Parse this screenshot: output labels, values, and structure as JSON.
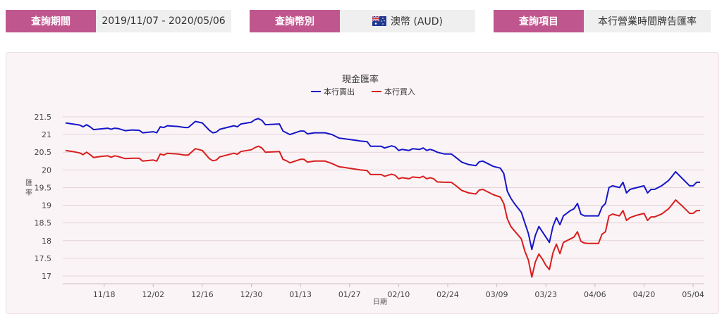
{
  "query": {
    "period_label": "查詢期間",
    "period_value": "2019/11/07 - 2020/05/06",
    "currency_label": "查詢幣別",
    "currency_value": "澳幣 (AUD)",
    "currency_flag_icon": "australia-flag-icon",
    "item_label": "查詢項目",
    "item_value": "本行營業時間牌告匯率"
  },
  "colors": {
    "accent": "#c0568e",
    "sell_line": "#1515c8",
    "buy_line": "#d81e1e",
    "grid": "#e3d3d8"
  },
  "chart_data": {
    "type": "line",
    "title": "現金匯率",
    "xlabel": "日期",
    "ylabel": "匯率",
    "x_range": [
      "2019-11-07",
      "2020-05-06"
    ],
    "ylim": [
      16.9,
      21.6
    ],
    "yticks": [
      17,
      17.5,
      18,
      18.5,
      19,
      19.5,
      20,
      20.5,
      21,
      21.5
    ],
    "xticks": [
      {
        "date": "2019-11-18",
        "label": "11/18"
      },
      {
        "date": "2019-12-02",
        "label": "12/02"
      },
      {
        "date": "2019-12-16",
        "label": "12/16"
      },
      {
        "date": "2019-12-30",
        "label": "12/30"
      },
      {
        "date": "2020-01-13",
        "label": "01/13"
      },
      {
        "date": "2020-01-27",
        "label": "01/27"
      },
      {
        "date": "2020-02-10",
        "label": "02/10"
      },
      {
        "date": "2020-02-24",
        "label": "02/24"
      },
      {
        "date": "2020-03-09",
        "label": "03/09"
      },
      {
        "date": "2020-03-23",
        "label": "03/23"
      },
      {
        "date": "2020-04-06",
        "label": "04/06"
      },
      {
        "date": "2020-04-20",
        "label": "04/20"
      },
      {
        "date": "2020-05-04",
        "label": "05/04"
      }
    ],
    "grid": true,
    "legend_position": "top-center",
    "series": [
      {
        "name": "本行賣出",
        "color": "#1515c8",
        "points": [
          [
            "2019-11-07",
            21.33
          ],
          [
            "2019-11-09",
            21.3
          ],
          [
            "2019-11-11",
            21.27
          ],
          [
            "2019-11-12",
            21.22
          ],
          [
            "2019-11-13",
            21.28
          ],
          [
            "2019-11-14",
            21.22
          ],
          [
            "2019-11-15",
            21.14
          ],
          [
            "2019-11-17",
            21.16
          ],
          [
            "2019-11-19",
            21.18
          ],
          [
            "2019-11-20",
            21.15
          ],
          [
            "2019-11-21",
            21.18
          ],
          [
            "2019-11-22",
            21.17
          ],
          [
            "2019-11-24",
            21.11
          ],
          [
            "2019-11-26",
            21.13
          ],
          [
            "2019-11-28",
            21.12
          ],
          [
            "2019-11-29",
            21.05
          ],
          [
            "2019-12-02",
            21.08
          ],
          [
            "2019-12-03",
            21.05
          ],
          [
            "2019-12-04",
            21.22
          ],
          [
            "2019-12-05",
            21.2
          ],
          [
            "2019-12-06",
            21.25
          ],
          [
            "2019-12-09",
            21.23
          ],
          [
            "2019-12-11",
            21.2
          ],
          [
            "2019-12-12",
            21.2
          ],
          [
            "2019-12-14",
            21.37
          ],
          [
            "2019-12-16",
            21.33
          ],
          [
            "2019-12-18",
            21.12
          ],
          [
            "2019-12-19",
            21.05
          ],
          [
            "2019-12-20",
            21.07
          ],
          [
            "2019-12-21",
            21.15
          ],
          [
            "2019-12-25",
            21.25
          ],
          [
            "2019-12-26",
            21.22
          ],
          [
            "2019-12-27",
            21.3
          ],
          [
            "2019-12-30",
            21.35
          ],
          [
            "2019-12-31",
            21.42
          ],
          [
            "2020-01-01",
            21.45
          ],
          [
            "2020-01-02",
            21.4
          ],
          [
            "2020-01-03",
            21.28
          ],
          [
            "2020-01-07",
            21.3
          ],
          [
            "2020-01-08",
            21.1
          ],
          [
            "2020-01-09",
            21.05
          ],
          [
            "2020-01-10",
            21.0
          ],
          [
            "2020-01-13",
            21.1
          ],
          [
            "2020-01-14",
            21.1
          ],
          [
            "2020-01-15",
            21.02
          ],
          [
            "2020-01-17",
            21.05
          ],
          [
            "2020-01-20",
            21.05
          ],
          [
            "2020-01-22",
            21.0
          ],
          [
            "2020-01-24",
            20.9
          ],
          [
            "2020-01-28",
            20.85
          ],
          [
            "2020-01-30",
            20.82
          ],
          [
            "2020-02-01",
            20.8
          ],
          [
            "2020-02-02",
            20.67
          ],
          [
            "2020-02-05",
            20.67
          ],
          [
            "2020-02-06",
            20.62
          ],
          [
            "2020-02-08",
            20.68
          ],
          [
            "2020-02-09",
            20.65
          ],
          [
            "2020-02-10",
            20.55
          ],
          [
            "2020-02-11",
            20.58
          ],
          [
            "2020-02-13",
            20.55
          ],
          [
            "2020-02-14",
            20.6
          ],
          [
            "2020-02-16",
            20.58
          ],
          [
            "2020-02-17",
            20.62
          ],
          [
            "2020-02-18",
            20.55
          ],
          [
            "2020-02-19",
            20.58
          ],
          [
            "2020-02-20",
            20.55
          ],
          [
            "2020-02-21",
            20.5
          ],
          [
            "2020-02-23",
            20.45
          ],
          [
            "2020-02-25",
            20.45
          ],
          [
            "2020-02-26",
            20.38
          ],
          [
            "2020-02-28",
            20.22
          ],
          [
            "2020-03-01",
            20.15
          ],
          [
            "2020-03-03",
            20.12
          ],
          [
            "2020-03-04",
            20.23
          ],
          [
            "2020-03-05",
            20.25
          ],
          [
            "2020-03-06",
            20.2
          ],
          [
            "2020-03-08",
            20.1
          ],
          [
            "2020-03-10",
            20.05
          ],
          [
            "2020-03-11",
            19.9
          ],
          [
            "2020-03-12",
            19.4
          ],
          [
            "2020-03-13",
            19.2
          ],
          [
            "2020-03-14",
            19.05
          ],
          [
            "2020-03-16",
            18.8
          ],
          [
            "2020-03-17",
            18.5
          ],
          [
            "2020-03-18",
            18.2
          ],
          [
            "2020-03-19",
            17.75
          ],
          [
            "2020-03-20",
            18.15
          ],
          [
            "2020-03-21",
            18.4
          ],
          [
            "2020-03-22",
            18.25
          ],
          [
            "2020-03-23",
            18.1
          ],
          [
            "2020-03-24",
            17.95
          ],
          [
            "2020-03-25",
            18.4
          ],
          [
            "2020-03-26",
            18.65
          ],
          [
            "2020-03-27",
            18.45
          ],
          [
            "2020-03-28",
            18.7
          ],
          [
            "2020-03-30",
            18.85
          ],
          [
            "2020-03-31",
            18.9
          ],
          [
            "2020-04-01",
            19.05
          ],
          [
            "2020-04-02",
            18.75
          ],
          [
            "2020-04-03",
            18.7
          ],
          [
            "2020-04-04",
            18.7
          ],
          [
            "2020-04-06",
            18.7
          ],
          [
            "2020-04-07",
            18.7
          ],
          [
            "2020-04-08",
            18.95
          ],
          [
            "2020-04-09",
            19.05
          ],
          [
            "2020-04-10",
            19.5
          ],
          [
            "2020-04-11",
            19.55
          ],
          [
            "2020-04-13",
            19.5
          ],
          [
            "2020-04-14",
            19.65
          ],
          [
            "2020-04-15",
            19.35
          ],
          [
            "2020-04-16",
            19.45
          ],
          [
            "2020-04-18",
            19.5
          ],
          [
            "2020-04-20",
            19.55
          ],
          [
            "2020-04-21",
            19.35
          ],
          [
            "2020-04-22",
            19.45
          ],
          [
            "2020-04-23",
            19.45
          ],
          [
            "2020-04-25",
            19.55
          ],
          [
            "2020-04-27",
            19.7
          ],
          [
            "2020-04-28",
            19.82
          ],
          [
            "2020-04-29",
            19.95
          ],
          [
            "2020-05-01",
            19.75
          ],
          [
            "2020-05-02",
            19.65
          ],
          [
            "2020-05-03",
            19.55
          ],
          [
            "2020-05-04",
            19.55
          ],
          [
            "2020-05-05",
            19.65
          ],
          [
            "2020-05-06",
            19.65
          ]
        ]
      },
      {
        "name": "本行買入",
        "color": "#d81e1e",
        "points": [
          [
            "2019-11-07",
            20.55
          ],
          [
            "2019-11-09",
            20.52
          ],
          [
            "2019-11-11",
            20.48
          ],
          [
            "2019-11-12",
            20.43
          ],
          [
            "2019-11-13",
            20.5
          ],
          [
            "2019-11-14",
            20.43
          ],
          [
            "2019-11-15",
            20.35
          ],
          [
            "2019-11-17",
            20.38
          ],
          [
            "2019-11-19",
            20.4
          ],
          [
            "2019-11-20",
            20.36
          ],
          [
            "2019-11-21",
            20.4
          ],
          [
            "2019-11-22",
            20.38
          ],
          [
            "2019-11-24",
            20.32
          ],
          [
            "2019-11-26",
            20.33
          ],
          [
            "2019-11-28",
            20.33
          ],
          [
            "2019-11-29",
            20.25
          ],
          [
            "2019-12-02",
            20.28
          ],
          [
            "2019-12-03",
            20.25
          ],
          [
            "2019-12-04",
            20.45
          ],
          [
            "2019-12-05",
            20.42
          ],
          [
            "2019-12-06",
            20.47
          ],
          [
            "2019-12-09",
            20.45
          ],
          [
            "2019-12-11",
            20.42
          ],
          [
            "2019-12-12",
            20.42
          ],
          [
            "2019-12-14",
            20.6
          ],
          [
            "2019-12-16",
            20.55
          ],
          [
            "2019-12-18",
            20.32
          ],
          [
            "2019-12-19",
            20.26
          ],
          [
            "2019-12-20",
            20.28
          ],
          [
            "2019-12-21",
            20.37
          ],
          [
            "2019-12-25",
            20.47
          ],
          [
            "2019-12-26",
            20.44
          ],
          [
            "2019-12-27",
            20.52
          ],
          [
            "2019-12-30",
            20.57
          ],
          [
            "2019-12-31",
            20.63
          ],
          [
            "2020-01-01",
            20.67
          ],
          [
            "2020-01-02",
            20.62
          ],
          [
            "2020-01-03",
            20.5
          ],
          [
            "2020-01-07",
            20.52
          ],
          [
            "2020-01-08",
            20.3
          ],
          [
            "2020-01-09",
            20.26
          ],
          [
            "2020-01-10",
            20.2
          ],
          [
            "2020-01-13",
            20.3
          ],
          [
            "2020-01-14",
            20.3
          ],
          [
            "2020-01-15",
            20.22
          ],
          [
            "2020-01-17",
            20.25
          ],
          [
            "2020-01-20",
            20.25
          ],
          [
            "2020-01-22",
            20.18
          ],
          [
            "2020-01-24",
            20.09
          ],
          [
            "2020-01-28",
            20.03
          ],
          [
            "2020-01-30",
            20.0
          ],
          [
            "2020-02-01",
            19.98
          ],
          [
            "2020-02-02",
            19.87
          ],
          [
            "2020-02-05",
            19.87
          ],
          [
            "2020-02-06",
            19.82
          ],
          [
            "2020-02-08",
            19.88
          ],
          [
            "2020-02-09",
            19.85
          ],
          [
            "2020-02-10",
            19.75
          ],
          [
            "2020-02-11",
            19.78
          ],
          [
            "2020-02-13",
            19.75
          ],
          [
            "2020-02-14",
            19.8
          ],
          [
            "2020-02-16",
            19.78
          ],
          [
            "2020-02-17",
            19.82
          ],
          [
            "2020-02-18",
            19.75
          ],
          [
            "2020-02-19",
            19.78
          ],
          [
            "2020-02-20",
            19.75
          ],
          [
            "2020-02-21",
            19.66
          ],
          [
            "2020-02-23",
            19.65
          ],
          [
            "2020-02-25",
            19.65
          ],
          [
            "2020-02-26",
            19.58
          ],
          [
            "2020-02-28",
            19.42
          ],
          [
            "2020-03-01",
            19.35
          ],
          [
            "2020-03-03",
            19.32
          ],
          [
            "2020-03-04",
            19.43
          ],
          [
            "2020-03-05",
            19.45
          ],
          [
            "2020-03-06",
            19.4
          ],
          [
            "2020-03-08",
            19.3
          ],
          [
            "2020-03-10",
            19.23
          ],
          [
            "2020-03-11",
            19.05
          ],
          [
            "2020-03-12",
            18.62
          ],
          [
            "2020-03-13",
            18.4
          ],
          [
            "2020-03-14",
            18.28
          ],
          [
            "2020-03-16",
            18.05
          ],
          [
            "2020-03-17",
            17.7
          ],
          [
            "2020-03-18",
            17.45
          ],
          [
            "2020-03-19",
            16.97
          ],
          [
            "2020-03-20",
            17.4
          ],
          [
            "2020-03-21",
            17.62
          ],
          [
            "2020-03-22",
            17.48
          ],
          [
            "2020-03-23",
            17.3
          ],
          [
            "2020-03-24",
            17.18
          ],
          [
            "2020-03-25",
            17.65
          ],
          [
            "2020-03-26",
            17.9
          ],
          [
            "2020-03-27",
            17.63
          ],
          [
            "2020-03-28",
            17.95
          ],
          [
            "2020-03-30",
            18.05
          ],
          [
            "2020-03-31",
            18.1
          ],
          [
            "2020-04-01",
            18.25
          ],
          [
            "2020-04-02",
            17.98
          ],
          [
            "2020-04-03",
            17.93
          ],
          [
            "2020-04-04",
            17.92
          ],
          [
            "2020-04-06",
            17.92
          ],
          [
            "2020-04-07",
            17.92
          ],
          [
            "2020-04-08",
            18.18
          ],
          [
            "2020-04-09",
            18.25
          ],
          [
            "2020-04-10",
            18.7
          ],
          [
            "2020-04-11",
            18.75
          ],
          [
            "2020-04-13",
            18.7
          ],
          [
            "2020-04-14",
            18.85
          ],
          [
            "2020-04-15",
            18.57
          ],
          [
            "2020-04-16",
            18.65
          ],
          [
            "2020-04-18",
            18.72
          ],
          [
            "2020-04-20",
            18.77
          ],
          [
            "2020-04-21",
            18.57
          ],
          [
            "2020-04-22",
            18.67
          ],
          [
            "2020-04-23",
            18.67
          ],
          [
            "2020-04-25",
            18.75
          ],
          [
            "2020-04-27",
            18.9
          ],
          [
            "2020-04-28",
            19.02
          ],
          [
            "2020-04-29",
            19.15
          ],
          [
            "2020-05-01",
            18.97
          ],
          [
            "2020-05-02",
            18.87
          ],
          [
            "2020-05-03",
            18.77
          ],
          [
            "2020-05-04",
            18.77
          ],
          [
            "2020-05-05",
            18.85
          ],
          [
            "2020-05-06",
            18.85
          ]
        ]
      }
    ]
  }
}
